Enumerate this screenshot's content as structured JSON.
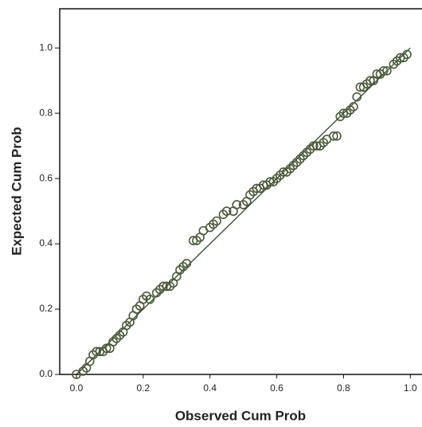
{
  "chart_data": {
    "type": "scatter",
    "x_label": "Observed Cum Prob",
    "y_label": "Expected Cum Prob",
    "xlim": [
      -0.05,
      1.035
    ],
    "ylim": [
      0,
      1.12
    ],
    "xticks": [
      {
        "value": 0,
        "label": "0.0"
      },
      {
        "value": 0.2,
        "label": "0.2"
      },
      {
        "value": 0.4,
        "label": "0.4"
      },
      {
        "value": 0.6,
        "label": "0.6"
      },
      {
        "value": 0.8,
        "label": "0.8"
      },
      {
        "value": 1,
        "label": "1.0"
      }
    ],
    "yticks": [
      {
        "value": 0,
        "label": "0.0"
      },
      {
        "value": 0.2,
        "label": "0.2"
      },
      {
        "value": 0.4,
        "label": "0.4"
      },
      {
        "value": 0.6,
        "label": "0.6"
      },
      {
        "value": 0.8,
        "label": "0.8"
      },
      {
        "value": 1,
        "label": "1.0"
      }
    ],
    "point_color": "#4a5a3a",
    "line_color": "#2f4a2a",
    "diagonal": {
      "x": [
        0,
        1
      ],
      "y": [
        0,
        1
      ]
    },
    "x": [
      0.0,
      0.02,
      0.03,
      0.04,
      0.05,
      0.06,
      0.07,
      0.08,
      0.09,
      0.1,
      0.11,
      0.12,
      0.13,
      0.14,
      0.15,
      0.16,
      0.17,
      0.18,
      0.19,
      0.2,
      0.21,
      0.22,
      0.24,
      0.25,
      0.26,
      0.27,
      0.28,
      0.29,
      0.3,
      0.31,
      0.32,
      0.33,
      0.35,
      0.36,
      0.37,
      0.38,
      0.4,
      0.41,
      0.42,
      0.44,
      0.45,
      0.47,
      0.48,
      0.5,
      0.51,
      0.52,
      0.53,
      0.54,
      0.55,
      0.56,
      0.57,
      0.58,
      0.59,
      0.6,
      0.61,
      0.62,
      0.63,
      0.64,
      0.65,
      0.66,
      0.67,
      0.68,
      0.69,
      0.7,
      0.71,
      0.72,
      0.73,
      0.74,
      0.75,
      0.77,
      0.78,
      0.79,
      0.8,
      0.81,
      0.82,
      0.83,
      0.84,
      0.85,
      0.86,
      0.87,
      0.88,
      0.89,
      0.9,
      0.91,
      0.92,
      0.93,
      0.95,
      0.96,
      0.97,
      0.98,
      0.99
    ],
    "y": [
      0.0,
      0.01,
      0.02,
      0.04,
      0.06,
      0.07,
      0.07,
      0.07,
      0.08,
      0.08,
      0.1,
      0.11,
      0.12,
      0.13,
      0.15,
      0.16,
      0.18,
      0.2,
      0.21,
      0.23,
      0.24,
      0.23,
      0.25,
      0.26,
      0.27,
      0.27,
      0.27,
      0.28,
      0.3,
      0.32,
      0.33,
      0.34,
      0.41,
      0.41,
      0.42,
      0.44,
      0.45,
      0.46,
      0.47,
      0.49,
      0.5,
      0.5,
      0.52,
      0.52,
      0.53,
      0.55,
      0.56,
      0.57,
      0.57,
      0.58,
      0.58,
      0.59,
      0.59,
      0.6,
      0.61,
      0.62,
      0.62,
      0.63,
      0.64,
      0.65,
      0.66,
      0.67,
      0.68,
      0.69,
      0.7,
      0.7,
      0.7,
      0.71,
      0.72,
      0.73,
      0.73,
      0.79,
      0.8,
      0.8,
      0.81,
      0.82,
      0.85,
      0.88,
      0.88,
      0.89,
      0.9,
      0.9,
      0.92,
      0.92,
      0.93,
      0.93,
      0.95,
      0.96,
      0.97,
      0.97,
      0.98
    ]
  }
}
